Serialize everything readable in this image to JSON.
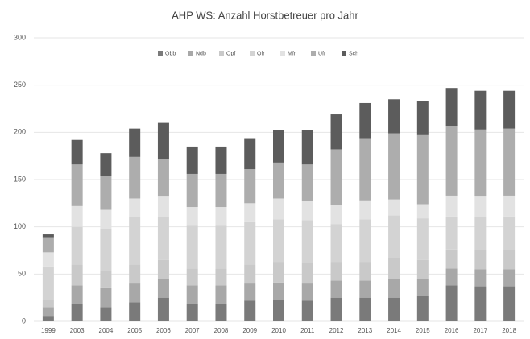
{
  "chart_data": {
    "type": "stacked_bar",
    "title": "AHP WS: Anzahl Horstbetreuer pro Jahr",
    "categories": [
      "1999",
      "2003",
      "2004",
      "2005",
      "2006",
      "2007",
      "2008",
      "2009",
      "2010",
      "2011",
      "2012",
      "2013",
      "2014",
      "2015",
      "2016",
      "2017",
      "2018"
    ],
    "series": [
      {
        "name": "Obb",
        "color": "#7a7a7a",
        "values": [
          5,
          18,
          15,
          20,
          25,
          18,
          18,
          22,
          23,
          22,
          25,
          25,
          25,
          27,
          38,
          37,
          37
        ]
      },
      {
        "name": "Ndb",
        "color": "#a8a8a8",
        "values": [
          10,
          20,
          20,
          20,
          20,
          20,
          20,
          18,
          18,
          18,
          18,
          18,
          20,
          18,
          18,
          18,
          18
        ]
      },
      {
        "name": "Opf",
        "color": "#c9c9c9",
        "values": [
          8,
          22,
          18,
          20,
          20,
          18,
          18,
          20,
          22,
          22,
          20,
          20,
          22,
          20,
          20,
          20,
          20
        ]
      },
      {
        "name": "Ofr",
        "color": "#d3d3d3",
        "values": [
          35,
          40,
          45,
          50,
          45,
          45,
          45,
          45,
          45,
          45,
          40,
          45,
          45,
          44,
          35,
          35,
          36
        ]
      },
      {
        "name": "Mfr",
        "color": "#e2e2e2",
        "values": [
          15,
          22,
          20,
          20,
          22,
          20,
          20,
          20,
          22,
          20,
          20,
          20,
          17,
          15,
          22,
          22,
          22
        ]
      },
      {
        "name": "Ufr",
        "color": "#adadad",
        "values": [
          16,
          44,
          36,
          44,
          40,
          35,
          35,
          36,
          38,
          39,
          59,
          65,
          70,
          73,
          74,
          71,
          71
        ]
      },
      {
        "name": "Sch",
        "color": "#5c5c5c",
        "values": [
          3,
          26,
          24,
          30,
          38,
          29,
          29,
          32,
          34,
          36,
          37,
          38,
          36,
          36,
          40,
          41,
          40
        ]
      }
    ],
    "ylim": [
      0,
      300
    ],
    "yticks": [
      0,
      50,
      100,
      150,
      200,
      250,
      300
    ],
    "grid": true,
    "legend": "top"
  }
}
